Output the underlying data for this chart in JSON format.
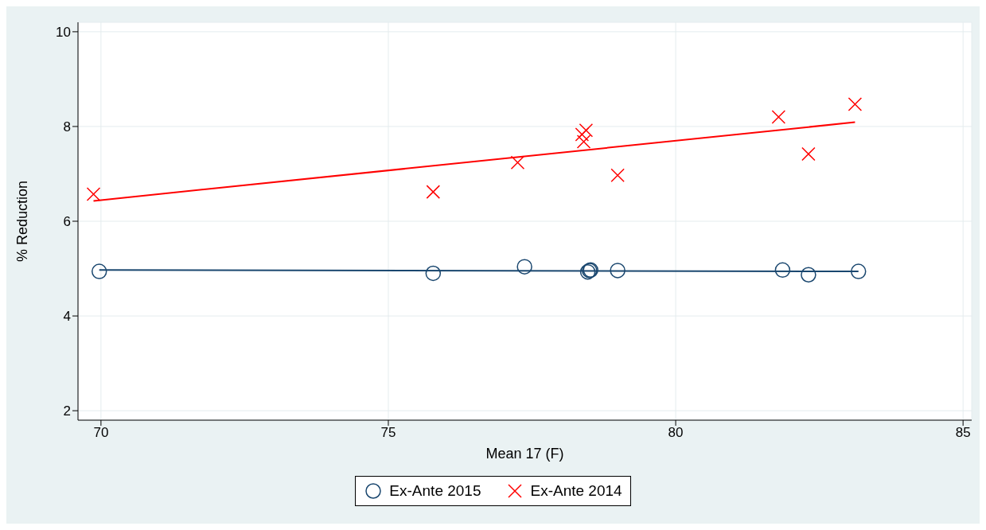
{
  "chart_data": {
    "type": "scatter",
    "xlabel": "Mean 17 (F)",
    "ylabel": "% Reduction",
    "xlim": [
      69.6,
      85.15
    ],
    "ylim": [
      1.8,
      10.2
    ],
    "xticks": [
      70,
      75,
      80,
      85
    ],
    "yticks": [
      2,
      4,
      6,
      8,
      10
    ],
    "grid": true,
    "legend": "bottom",
    "series": [
      {
        "name": "Ex-Ante 2015",
        "marker": "circle",
        "color": "#1a476f",
        "x": [
          69.97,
          75.78,
          77.37,
          78.47,
          78.52,
          78.5,
          78.99,
          81.86,
          82.31,
          83.18
        ],
        "values": [
          4.94,
          4.9,
          5.04,
          4.93,
          4.97,
          4.96,
          4.96,
          4.97,
          4.87,
          4.94
        ]
      },
      {
        "name": "Ex-Ante 2014",
        "marker": "cross",
        "color": "#ff0000",
        "x": [
          69.87,
          75.78,
          77.25,
          78.37,
          78.44,
          78.4,
          78.99,
          81.79,
          82.31,
          83.12
        ],
        "values": [
          6.57,
          6.62,
          7.24,
          7.83,
          7.92,
          7.68,
          6.97,
          8.2,
          7.42,
          8.47
        ]
      },
      {
        "type": "line",
        "marker": "none",
        "color": "#1a476f",
        "x": [
          69.97,
          83.18
        ],
        "values": [
          4.97,
          4.94
        ]
      },
      {
        "type": "line",
        "marker": "none",
        "color": "#ff0000",
        "x": [
          69.87,
          83.12
        ],
        "values": [
          6.43,
          8.09
        ]
      }
    ]
  }
}
